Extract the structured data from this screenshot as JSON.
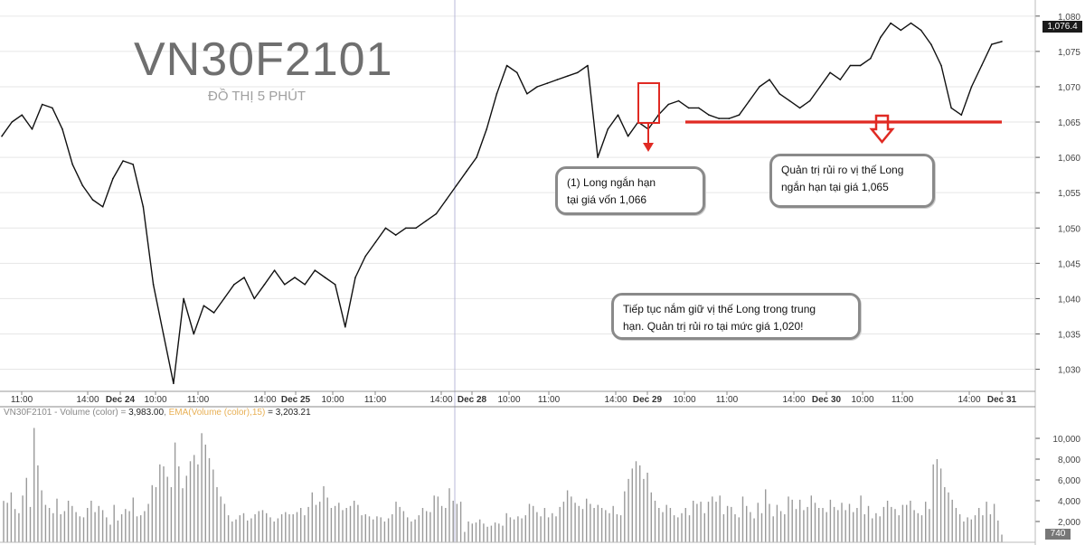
{
  "watermark": {
    "title": "VN30F2101",
    "subtitle": "ĐỒ THỊ 5 PHÚT"
  },
  "annotations": {
    "callout_1": [
      "(1) Long ngắn hạn",
      "tại giá vốn 1,066"
    ],
    "callout_2": [
      "Quản trị rủi ro vị thế Long",
      "ngắn hạn tại giá 1,065"
    ],
    "callout_3": [
      "Tiếp tục nắm giữ vị thế Long trong trung",
      "hạn. Quản trị rủi ro tại mức giá 1,020!"
    ]
  },
  "volume_legend": {
    "series_label": "VN30F2101 - Volume (color) = ",
    "series_value": "3,983.00",
    "ema_label": "EMA(Volume (color),15)",
    "ema_value": " = 3,203.21"
  },
  "last_price_label": "1,076.4",
  "last_volume_label": "740",
  "colors": {
    "price_line": "#111111",
    "support_line": "#e02a23",
    "arrow": "#e02a23",
    "volume_bar": "#9a9a9a",
    "grid_line": "#e6e6e6",
    "session_line": "#b8b8d8"
  },
  "chart_data": [
    {
      "type": "line",
      "x_tick_labels": [
        "11:00",
        "14:00",
        "Dec 24",
        "10:00",
        "11:00",
        "14:00",
        "Dec 25",
        "10:00",
        "11:00",
        "14:00",
        "Dec 28",
        "10:00",
        "11:00",
        "14:00",
        "Dec 29",
        "10:00",
        "11:00",
        "14:00",
        "Dec 30",
        "10:00",
        "11:00",
        "14:00",
        "Dec 31"
      ],
      "y_tick_labels": [
        "1,030",
        "1,035",
        "1,040",
        "1,045",
        "1,050",
        "1,055",
        "1,060",
        "1,065",
        "1,070",
        "1,075",
        "1,080"
      ],
      "ylim": [
        1027,
        1081
      ],
      "values": [
        1063,
        1065,
        1066,
        1064,
        1067.5,
        1067,
        1064,
        1059,
        1056,
        1054,
        1053,
        1057,
        1059.5,
        1059,
        1053,
        1042,
        1035,
        1028,
        1040,
        1035,
        1039,
        1038,
        1040,
        1042,
        1043,
        1040,
        1042,
        1044,
        1042,
        1043,
        1042,
        1044,
        1043,
        1042,
        1036,
        1043,
        1046,
        1048,
        1050,
        1049,
        1050,
        1050,
        1051,
        1052,
        1054,
        1056,
        1058,
        1060,
        1064,
        1069,
        1073,
        1072,
        1069,
        1070,
        1070.5,
        1071,
        1071.5,
        1072,
        1073,
        1060,
        1064,
        1066,
        1063,
        1065,
        1064,
        1066,
        1067.5,
        1068,
        1067,
        1067,
        1066,
        1065.5,
        1065.5,
        1066,
        1068,
        1070,
        1071,
        1069,
        1068,
        1067,
        1068,
        1070,
        1072,
        1071,
        1073,
        1073,
        1074,
        1077,
        1079,
        1078,
        1079,
        1078,
        1076,
        1073,
        1067,
        1066,
        1070,
        1073,
        1076,
        1076.4
      ],
      "annotations": [
        "(1) Long ngắn hạn tại giá vốn 1,066",
        "Quản trị rủi ro vị thế Long ngắn hạn tại giá 1,065",
        "Tiếp tục nắm giữ vị thế Long trong trung hạn. Quản trị rủi ro tại mức giá 1,020!"
      ],
      "reference_lines": [
        1065
      ],
      "last_value_label": "1,076.4"
    },
    {
      "type": "bar",
      "series": [
        {
          "name": "VN30F2101 - Volume (color)",
          "values": [
            3983,
            3800,
            4800,
            3200,
            2800,
            4500,
            6200,
            3400,
            11000,
            7400,
            5000,
            3600,
            3300,
            2800,
            4200,
            2700,
            3000,
            4000,
            3500,
            2900,
            2500,
            2400,
            3300,
            4000,
            2900,
            3500,
            3100,
            2400,
            1700,
            3600,
            2100,
            2700,
            3200,
            3000,
            4300,
            2500,
            2600,
            3000,
            3700,
            5500,
            5300,
            7500,
            7300,
            6300,
            5300,
            9600,
            7300,
            5200,
            6400,
            7800,
            8400,
            7500,
            10500,
            9400,
            8100,
            7000,
            5300,
            4400,
            3700,
            2600,
            2000,
            2200,
            2600,
            2800,
            2100,
            2300,
            2700,
            3000,
            3100,
            2800,
            2400,
            2000,
            2300,
            2700,
            2900,
            2700,
            2700,
            2900,
            3300,
            2600,
            3400,
            4800,
            3600,
            3900,
            5400,
            4300,
            3300,
            3500,
            3800,
            3100,
            3300,
            3500,
            4000,
            3600,
            2600,
            2700,
            2500,
            2200,
            2500,
            2400,
            2000,
            2300,
            2700,
            3900,
            3400,
            3000,
            2400,
            2000,
            2200,
            2600,
            3300,
            3000,
            2900,
            4500,
            4400,
            3500,
            3300,
            5200,
            4000,
            3700,
            3900,
            1000,
            2000,
            1800,
            1900,
            2200,
            1800,
            1500,
            1600,
            1900,
            1800,
            1600,
            2800,
            2400,
            2200,
            2500,
            2300,
            2600,
            3700,
            3500,
            2900,
            2500,
            3300,
            2400,
            2800,
            2500,
            3400,
            3900,
            5000,
            4400,
            3800,
            3500,
            3200,
            4200,
            3700,
            3300,
            3600,
            3300,
            3100,
            2800,
            3500,
            2700,
            2600,
            4900,
            6100,
            7100,
            7800,
            7400,
            6100,
            6700,
            4800,
            4000,
            3300,
            2900,
            3600,
            3300,
            2600,
            2400,
            2800,
            3300,
            2600,
            4000,
            3700,
            3900,
            2800,
            3900,
            4400,
            3900,
            4500,
            2700,
            3500,
            3400,
            2700,
            2400,
            4400,
            3500,
            2900,
            2300,
            3800,
            2800,
            5100,
            3700,
            2500,
            3600,
            3000,
            2700,
            4400,
            4100,
            3200,
            4100,
            3100,
            3400,
            4500,
            3800,
            3300,
            3300,
            2900,
            4100,
            3400,
            3100,
            3800,
            3100,
            3700,
            2900,
            3300,
            4500,
            2700,
            3500,
            2300,
            2800,
            2500,
            3400,
            4000,
            3400,
            3200,
            2600,
            3600,
            3600,
            4000,
            3100,
            2800,
            2600,
            3900,
            3200,
            7500,
            8000,
            7100,
            5300,
            4800,
            4100,
            3300,
            2700,
            2000,
            2400,
            2200,
            2600,
            3300,
            2600,
            3900,
            2700,
            3700,
            2100,
            740
          ]
        },
        {
          "name": "EMA(Volume (color),15)"
        }
      ],
      "y_tick_labels": [
        "2,000",
        "4,000",
        "6,000",
        "8,000",
        "10,000"
      ],
      "ylim": [
        0,
        12000
      ],
      "last_value_label": "740"
    }
  ]
}
